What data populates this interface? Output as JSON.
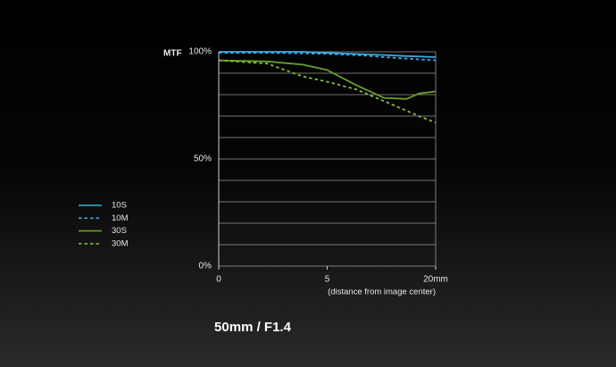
{
  "chart_data": {
    "type": "line",
    "title": "50mm / F1.4",
    "ylabel": "MTF",
    "xlabel": "(distance from image center)",
    "x": [
      0,
      1,
      3,
      5,
      8,
      11.6,
      15,
      17,
      20
    ],
    "series": [
      {
        "name": "10S",
        "color": "#3fa9e0",
        "linestyle": "solid",
        "values": [
          100,
          100,
          100,
          99.5,
          99,
          98.5,
          98,
          97.8,
          97.5
        ]
      },
      {
        "name": "10M",
        "color": "#3fa9e0",
        "linestyle": "dashed",
        "values": [
          99.5,
          99.5,
          99.3,
          99,
          98.5,
          97.5,
          96.8,
          96.5,
          96
        ]
      },
      {
        "name": "30S",
        "color": "#6a9f2a",
        "linestyle": "solid",
        "values": [
          96,
          95.5,
          94,
          91.5,
          84.5,
          78.5,
          78,
          80.5,
          81.5
        ]
      },
      {
        "name": "30M",
        "color": "#86b83a",
        "linestyle": "dashed",
        "values": [
          96,
          94.5,
          88.5,
          86,
          82.5,
          77,
          72.5,
          70,
          67
        ]
      }
    ],
    "xlim": [
      0,
      20
    ],
    "xscale": "sqrt",
    "xticks": [
      0,
      5,
      {
        "value": 20,
        "label": "20mm"
      }
    ],
    "ylim": [
      0,
      100
    ],
    "yticks": [
      {
        "value": 0,
        "label": "0%"
      },
      {
        "value": 50,
        "label": "50%"
      },
      {
        "value": 100,
        "label": "100%"
      }
    ],
    "ygrid": [
      0,
      10,
      20,
      30,
      40,
      50,
      60,
      70,
      80,
      90,
      100
    ],
    "legend": "left"
  }
}
